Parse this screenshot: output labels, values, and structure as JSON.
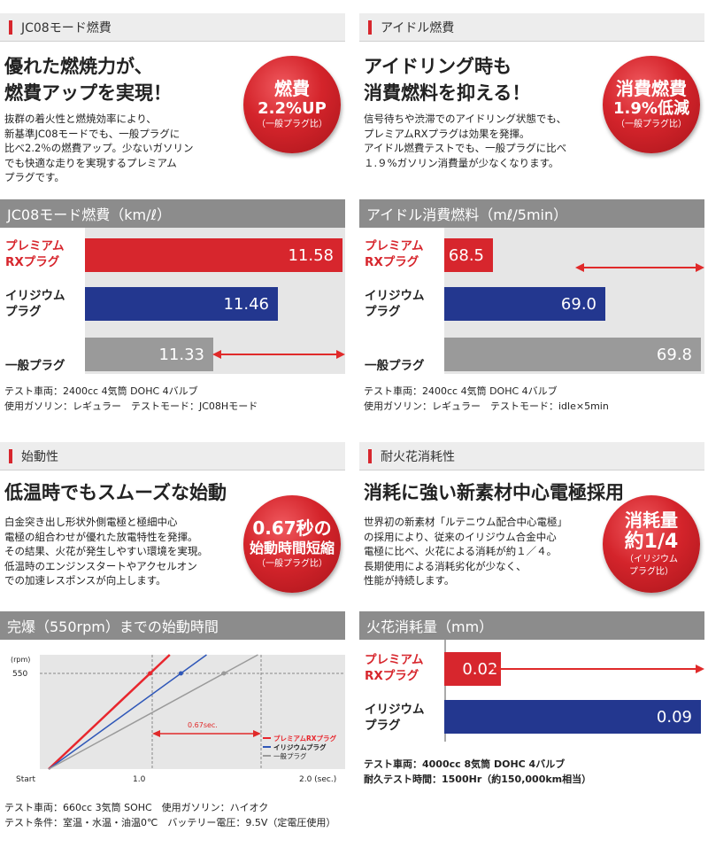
{
  "fuel": {
    "header": "JC08モード燃費",
    "headline": "優れた燃焼力が、\n燃費アップを実現！",
    "body": "抜群の着火性と燃焼効率により、\n新基準JC08モードでも、一般プラグに\n比べ2.2％の燃費アップ。少ないガソリン\nでも快適な走りを実現するプレミアム\nプラグです。",
    "badge": {
      "line1": "燃費",
      "line2": "2.2%UP",
      "sub": "（一般プラグ比）"
    },
    "chart_title": "JC08モード燃費（km/ℓ）",
    "note": "テスト車両：2400cc 4気筒 DOHC 4バルブ\n使用ガソリン：レギュラー　テストモード：JC08Hモード",
    "chart_data": {
      "type": "bar",
      "title": "JC08モード燃費（km/ℓ）",
      "categories": [
        "プレミアム\nRXプラグ",
        "イリジウム\nプラグ",
        "一般プラグ"
      ],
      "values": [
        11.58,
        11.46,
        11.33
      ],
      "value_labels": [
        "11.58",
        "11.46",
        "11.33"
      ],
      "colors": [
        "#d7262d",
        "#23378f",
        "#9a9a9a"
      ]
    }
  },
  "idle": {
    "header": "アイドル燃費",
    "headline": "アイドリング時も\n消費燃料を抑える！",
    "body": "信号待ちや渋滞でのアイドリング状態でも、\nプレミアムRXプラグは効果を発揮。\nアイドル燃費テストでも、一般プラグに比べ\n１.９%ガソリン消費量が少なくなります。",
    "badge": {
      "line1": "消費燃費",
      "line2": "1.9%低減",
      "sub": "（一般プラグ比）"
    },
    "chart_title": "アイドル消費燃料（mℓ/5min）",
    "note": "テスト車両：2400cc 4気筒 DOHC 4バルブ\n使用ガソリン：レギュラー　テストモード：idle×5min",
    "chart_data": {
      "type": "bar",
      "title": "アイドル消費燃料（mℓ/5min）",
      "categories": [
        "プレミアム\nRXプラグ",
        "イリジウム\nプラグ",
        "一般プラグ"
      ],
      "values": [
        68.5,
        69.0,
        69.8
      ],
      "value_labels": [
        "68.5",
        "69.0",
        "69.8"
      ],
      "colors": [
        "#d7262d",
        "#23378f",
        "#9a9a9a"
      ]
    }
  },
  "start": {
    "header": "始動性",
    "headline": "低温時でもスムーズな始動",
    "body": "白金突き出し形状外側電極と極細中心\n電極の組合わせが優れた放電特性を発揮。\nその結果、火花が発生しやすい環境を実現。\n低温時のエンジンスタートやアクセルオン\nでの加速レスポンスが向上します。",
    "badge": {
      "line1": "0.67秒の",
      "line2": "始動時間短縮",
      "sub": "（一般プラグ比）"
    },
    "chart_title": "完爆（550rpm）までの始動時間",
    "note": "テスト車両：660cc 3気筒 SOHC　使用ガソリン：ハイオク\nテスト条件：室温・水温・油温0℃　バッテリー電圧：9.5V（定電圧使用）",
    "chart_data": {
      "type": "line",
      "title": "完爆（550rpm）までの始動時間",
      "ylabel": "(rpm)",
      "y_tick": "550",
      "x_ticks": [
        "Start",
        "1.0",
        "2.0 (sec.)"
      ],
      "xlim": [
        0,
        2.0
      ],
      "ylim": [
        0,
        550
      ],
      "series": [
        {
          "name": "プレミアムRXプラグ",
          "color": "#e8262d",
          "x": [
            0,
            0.92
          ],
          "y": [
            0,
            550
          ]
        },
        {
          "name": "イリジウムプラグ",
          "color": "#2f57b8",
          "x": [
            0,
            1.2
          ],
          "y": [
            0,
            550
          ]
        },
        {
          "name": "一般プラグ",
          "color": "#9a9a9a",
          "x": [
            0,
            1.59
          ],
          "y": [
            0,
            550
          ]
        }
      ],
      "annotation": "0.67sec."
    }
  },
  "spark": {
    "header": "耐火花消耗性",
    "headline": "消耗に強い新素材中心電極採用",
    "body": "世界初の新素材「ルテニウム配合中心電極」\nの採用により、従来のイリジウム合金中心\n電極に比べ、火花による消耗が約１／４。\n長期使用による消耗劣化が少なく、\n性能が持続します。",
    "badge": {
      "line1": "消耗量",
      "line2": "約1/4",
      "sub": "（イリジウム\nプラグ比）"
    },
    "chart_title": "火花消耗量（mm）",
    "note": "テスト車両：4000cc 8気筒 DOHC 4バルブ\n耐久テスト時間：1500Hr（約150,000km相当）",
    "chart_data": {
      "type": "bar",
      "title": "火花消耗量（mm）",
      "categories": [
        "プレミアム\nRXプラグ",
        "イリジウム\nプラグ"
      ],
      "values": [
        0.02,
        0.09
      ],
      "value_labels": [
        "0.02",
        "0.09"
      ],
      "colors": [
        "#d7262d",
        "#23378f"
      ]
    }
  }
}
